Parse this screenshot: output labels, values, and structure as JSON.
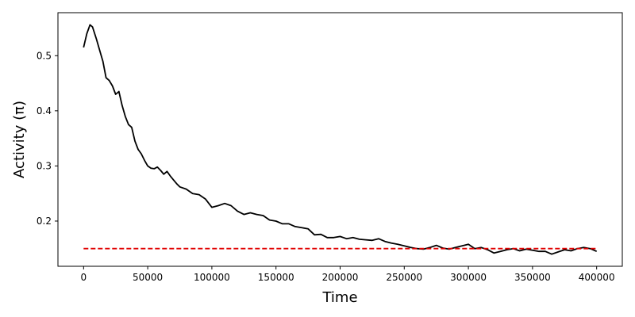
{
  "chart_data": {
    "type": "line",
    "xlabel": "Time",
    "ylabel": "Activity (π)",
    "xlim": [
      -20000,
      420000
    ],
    "ylim": [
      0.118,
      0.578
    ],
    "xticks": [
      0,
      50000,
      100000,
      150000,
      200000,
      250000,
      300000,
      350000,
      400000
    ],
    "yticks": [
      0.2,
      0.3,
      0.4,
      0.5
    ],
    "grid": false,
    "legend": "none",
    "series": [
      {
        "style": "solid",
        "color": "#000000",
        "x": [
          0,
          2500,
          5000,
          7000,
          10000,
          12500,
          15000,
          17500,
          20000,
          22500,
          25000,
          27500,
          30000,
          32500,
          35000,
          37500,
          40000,
          42500,
          45000,
          47500,
          50000,
          52500,
          55000,
          57500,
          60000,
          62500,
          65000,
          67500,
          70000,
          72500,
          75000,
          80000,
          85000,
          90000,
          95000,
          100000,
          105000,
          110000,
          115000,
          120000,
          125000,
          130000,
          135000,
          140000,
          145000,
          150000,
          155000,
          160000,
          165000,
          170000,
          175000,
          180000,
          185000,
          190000,
          195000,
          200000,
          205000,
          210000,
          215000,
          220000,
          225000,
          230000,
          235000,
          240000,
          245000,
          250000,
          255000,
          260000,
          265000,
          270000,
          275000,
          280000,
          285000,
          290000,
          295000,
          300000,
          305000,
          310000,
          315000,
          320000,
          325000,
          330000,
          335000,
          340000,
          345000,
          350000,
          355000,
          360000,
          365000,
          370000,
          375000,
          380000,
          385000,
          390000,
          395000,
          400000
        ],
        "y": [
          0.515,
          0.54,
          0.556,
          0.552,
          0.53,
          0.51,
          0.49,
          0.46,
          0.455,
          0.445,
          0.43,
          0.435,
          0.41,
          0.39,
          0.375,
          0.37,
          0.345,
          0.33,
          0.322,
          0.31,
          0.3,
          0.296,
          0.295,
          0.298,
          0.292,
          0.285,
          0.29,
          0.282,
          0.275,
          0.268,
          0.262,
          0.258,
          0.25,
          0.248,
          0.24,
          0.225,
          0.228,
          0.232,
          0.228,
          0.218,
          0.212,
          0.215,
          0.212,
          0.21,
          0.202,
          0.2,
          0.195,
          0.195,
          0.19,
          0.188,
          0.186,
          0.175,
          0.176,
          0.17,
          0.17,
          0.172,
          0.168,
          0.17,
          0.167,
          0.166,
          0.165,
          0.168,
          0.163,
          0.16,
          0.158,
          0.155,
          0.152,
          0.15,
          0.149,
          0.152,
          0.156,
          0.151,
          0.149,
          0.152,
          0.155,
          0.158,
          0.15,
          0.152,
          0.148,
          0.142,
          0.145,
          0.148,
          0.15,
          0.146,
          0.149,
          0.147,
          0.145,
          0.145,
          0.14,
          0.144,
          0.148,
          0.146,
          0.15,
          0.152,
          0.15,
          0.145
        ]
      },
      {
        "style": "dashed",
        "color": "#e00000",
        "x": [
          0,
          400000
        ],
        "y": [
          0.15,
          0.15
        ]
      }
    ]
  }
}
